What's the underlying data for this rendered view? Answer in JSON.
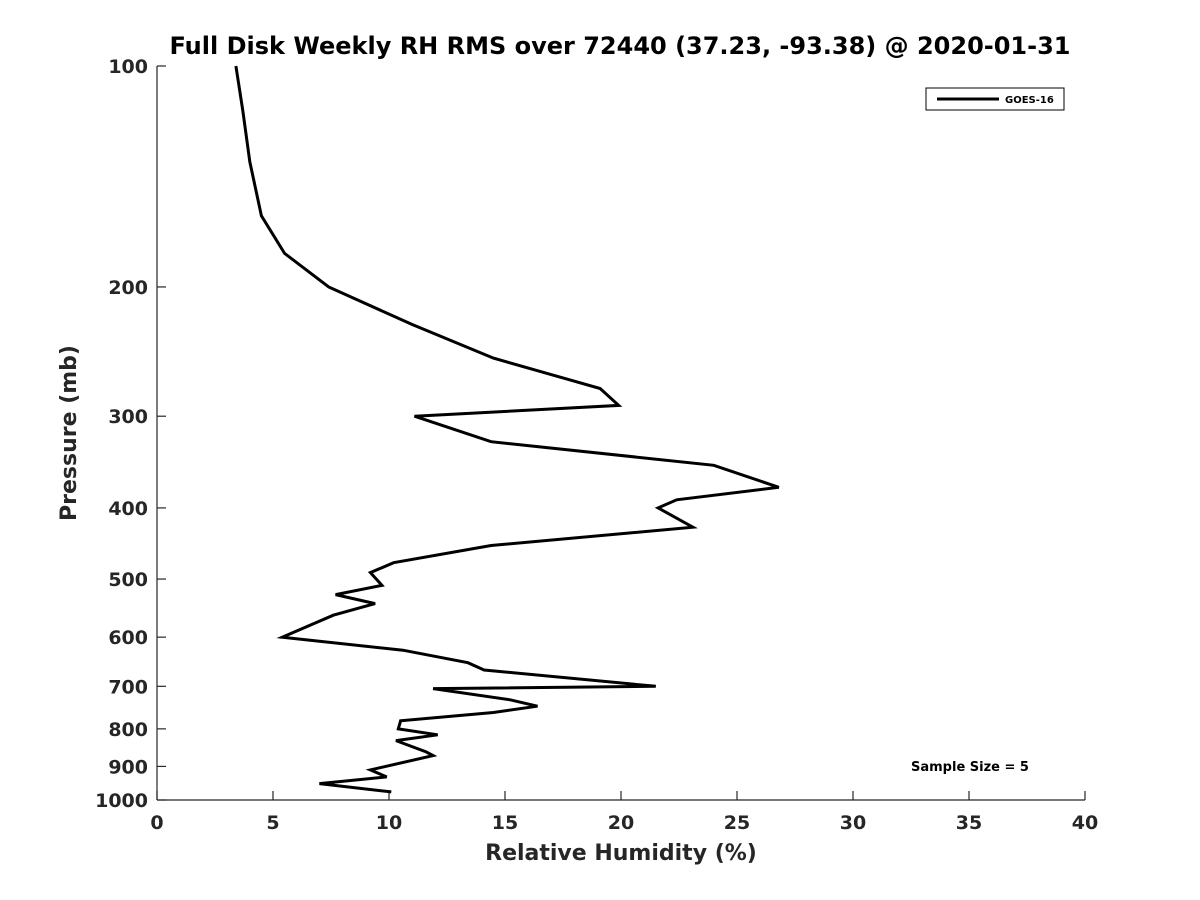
{
  "chart_data": {
    "type": "line",
    "title": "Full Disk Weekly RH RMS over 72440 (37.23, -93.38) @ 2020-01-31",
    "xlabel": "Relative Humidity (%)",
    "ylabel": "Pressure (mb)",
    "xlim": [
      0,
      40
    ],
    "ylim": [
      100,
      1000
    ],
    "y_scale": "log",
    "y_reversed": true,
    "grid": false,
    "legend_position": "top-right",
    "x_ticks": [
      "0",
      "5",
      "10",
      "15",
      "20",
      "25",
      "30",
      "35",
      "40"
    ],
    "y_ticks": [
      "100",
      "200",
      "300",
      "400",
      "500",
      "600",
      "700",
      "800",
      "900",
      "1000"
    ],
    "annotation": "Sample Size = 5",
    "colors": {
      "line": "#000000",
      "axis": "#262626"
    },
    "series": [
      {
        "name": "GOES-16",
        "points": [
          [
            3.4,
            100
          ],
          [
            3.7,
            115
          ],
          [
            4.0,
            135
          ],
          [
            4.5,
            160
          ],
          [
            5.5,
            180
          ],
          [
            7.4,
            200
          ],
          [
            11.0,
            225
          ],
          [
            14.5,
            250
          ],
          [
            19.1,
            275
          ],
          [
            19.9,
            290
          ],
          [
            11.1,
            300
          ],
          [
            14.4,
            325
          ],
          [
            24.0,
            350
          ],
          [
            26.8,
            375
          ],
          [
            22.4,
            390
          ],
          [
            21.6,
            400
          ],
          [
            23.1,
            425
          ],
          [
            14.4,
            450
          ],
          [
            10.2,
            475
          ],
          [
            9.2,
            490
          ],
          [
            9.7,
            510
          ],
          [
            7.7,
            525
          ],
          [
            9.4,
            540
          ],
          [
            7.6,
            560
          ],
          [
            5.4,
            600
          ],
          [
            10.6,
            625
          ],
          [
            13.4,
            650
          ],
          [
            14.1,
            665
          ],
          [
            21.5,
            700
          ],
          [
            11.9,
            705
          ],
          [
            15.2,
            730
          ],
          [
            16.4,
            745
          ],
          [
            14.5,
            760
          ],
          [
            10.5,
            780
          ],
          [
            10.4,
            800
          ],
          [
            12.1,
            815
          ],
          [
            10.3,
            830
          ],
          [
            11.6,
            860
          ],
          [
            11.9,
            870
          ],
          [
            9.2,
            910
          ],
          [
            9.9,
            930
          ],
          [
            7.0,
            950
          ],
          [
            10.1,
            975
          ]
        ]
      }
    ]
  }
}
